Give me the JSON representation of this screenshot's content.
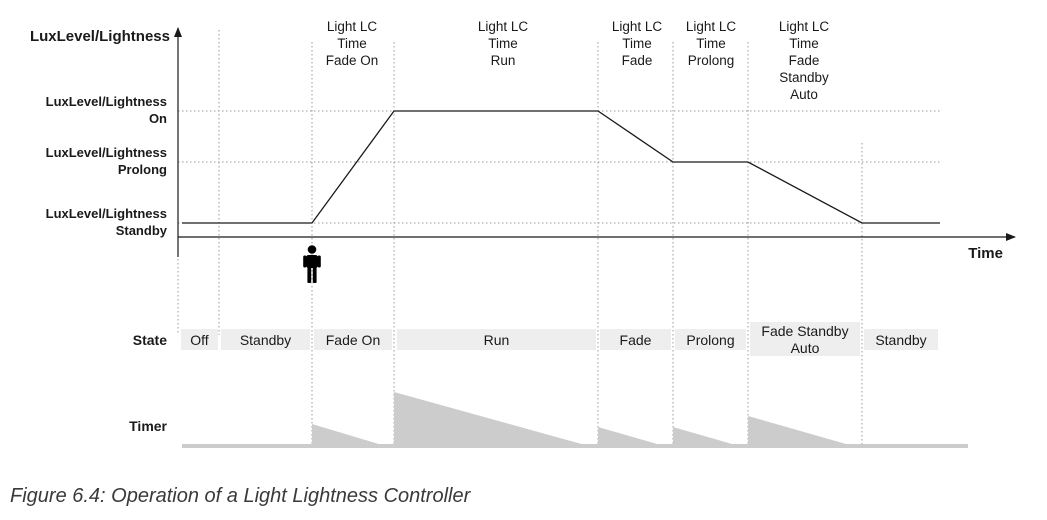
{
  "axes": {
    "y_title": "LuxLevel/Lightness",
    "x_title": "Time"
  },
  "levels": [
    {
      "line1": "LuxLevel/Lightness",
      "line2": "On"
    },
    {
      "line1": "LuxLevel/Lightness",
      "line2": "Prolong"
    },
    {
      "line1": "LuxLevel/Lightness",
      "line2": "Standby"
    }
  ],
  "phases": [
    {
      "lines": [
        "Light LC",
        "Time",
        "Fade On"
      ]
    },
    {
      "lines": [
        "Light LC",
        "Time",
        "Run"
      ]
    },
    {
      "lines": [
        "Light LC",
        "Time",
        "Fade"
      ]
    },
    {
      "lines": [
        "Light LC",
        "Time",
        "Prolong"
      ]
    },
    {
      "lines": [
        "Light LC",
        "Time",
        "Fade",
        "Standby",
        "Auto"
      ]
    }
  ],
  "state_row": {
    "label": "State",
    "states": [
      {
        "lines": [
          "Off"
        ]
      },
      {
        "lines": [
          "Standby"
        ]
      },
      {
        "lines": [
          "Fade On"
        ]
      },
      {
        "lines": [
          "Run"
        ]
      },
      {
        "lines": [
          "Fade"
        ]
      },
      {
        "lines": [
          "Prolong"
        ]
      },
      {
        "lines": [
          "Fade Standby",
          "Auto"
        ]
      },
      {
        "lines": [
          "Standby"
        ]
      }
    ]
  },
  "timer_row": {
    "label": "Timer"
  },
  "caption": "Figure 6.4: Operation of a Light Lightness Controller",
  "colors": {
    "state_box": "#eeeeee",
    "timer_fill": "#cccccc",
    "line": "#1a1a1a"
  },
  "icons": {
    "occupancy": "person-icon"
  }
}
